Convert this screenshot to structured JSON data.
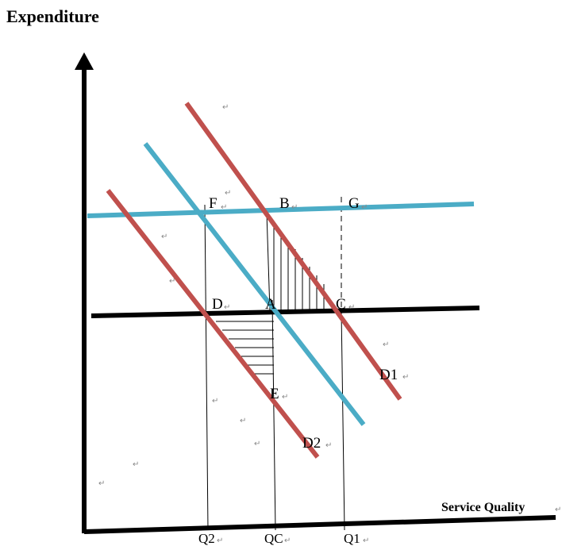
{
  "y_axis_label": "Expenditure",
  "x_axis_label": "Service Quality",
  "return_mark": "↵",
  "points": {
    "F": "F",
    "B": "B",
    "G": "G",
    "D": "D",
    "A": "A",
    "C": "C",
    "E": "E"
  },
  "curves": {
    "D1": "D1",
    "D2": "D2"
  },
  "x_ticks": {
    "Q2": "Q2",
    "QC": "QC",
    "Q1": "Q1"
  },
  "colors": {
    "red_line": "#c0504d",
    "blue_line": "#4bacc6",
    "axis": "#000000"
  }
}
